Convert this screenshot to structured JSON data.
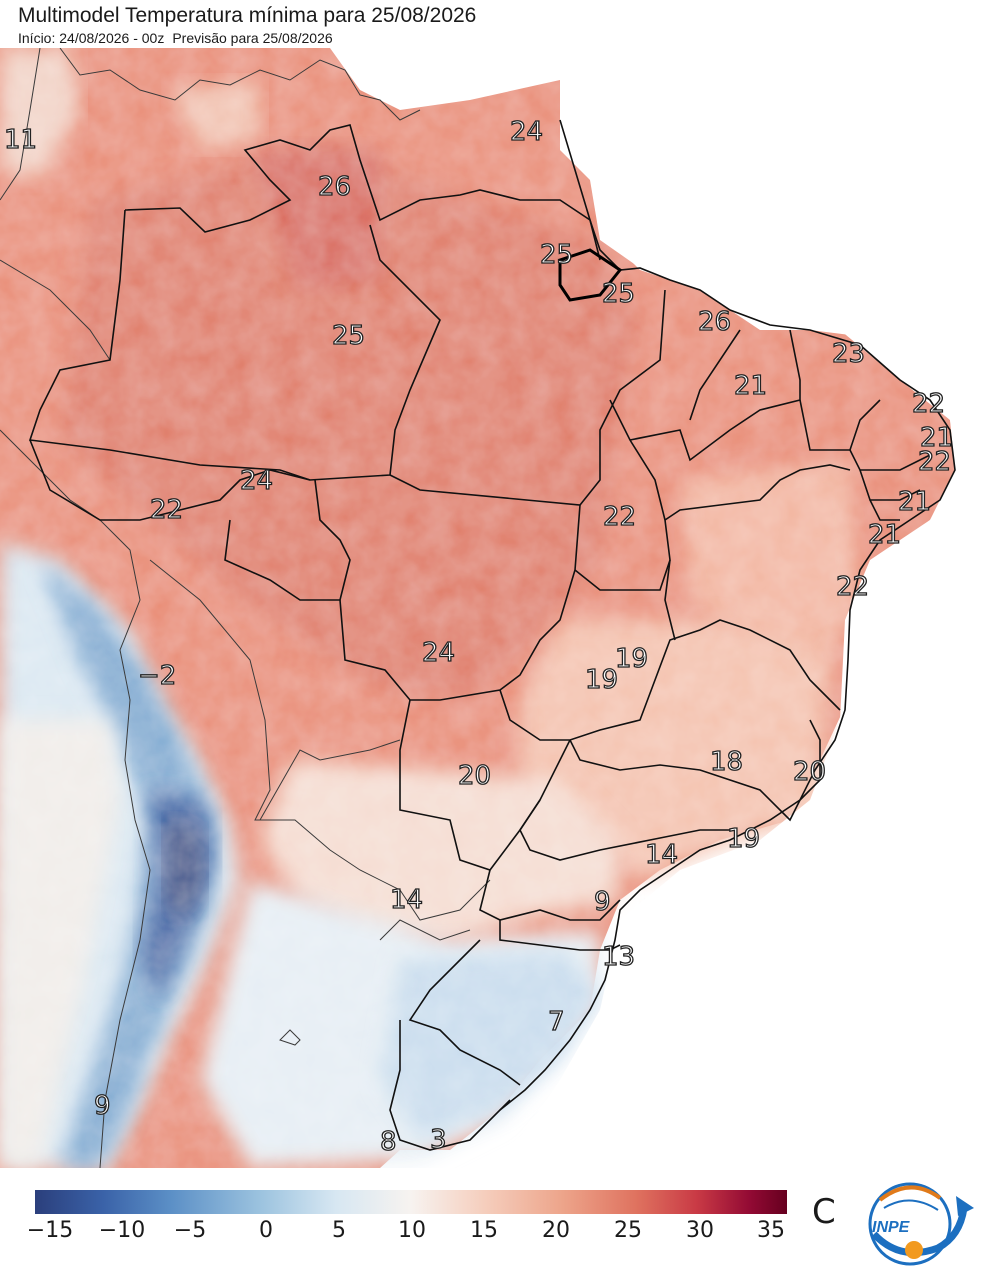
{
  "header": {
    "title": "Multimodel Temperatura mínima para 25/08/2026",
    "init_label": "Início: 24/08/2026 - 00z",
    "forecast_label": "Previsão para 25/08/2026"
  },
  "map_labels": [
    "11",
    "26",
    "24",
    "25",
    "25",
    "25",
    "26",
    "23",
    "21",
    "22",
    "21",
    "22",
    "21",
    "21",
    "22",
    "24",
    "22",
    "22",
    "19",
    "19",
    "24",
    "−2",
    "20",
    "18",
    "20",
    "19",
    "14",
    "14",
    "9",
    "13",
    "7",
    "9",
    "8",
    "3"
  ],
  "colorbar": {
    "ticks": [
      "−15",
      "−10",
      "−5",
      "0",
      "5",
      "10",
      "15",
      "20",
      "25",
      "30",
      "35"
    ],
    "unit": "C",
    "colors": [
      "#2b3f7c",
      "#3a62a8",
      "#5b8fc6",
      "#9cc3df",
      "#d7e7f2",
      "#f7f3f0",
      "#f5cdbc",
      "#eda58b",
      "#df725f",
      "#c93a45",
      "#930a34",
      "#66001f"
    ]
  },
  "logo": {
    "text": "INPE"
  }
}
